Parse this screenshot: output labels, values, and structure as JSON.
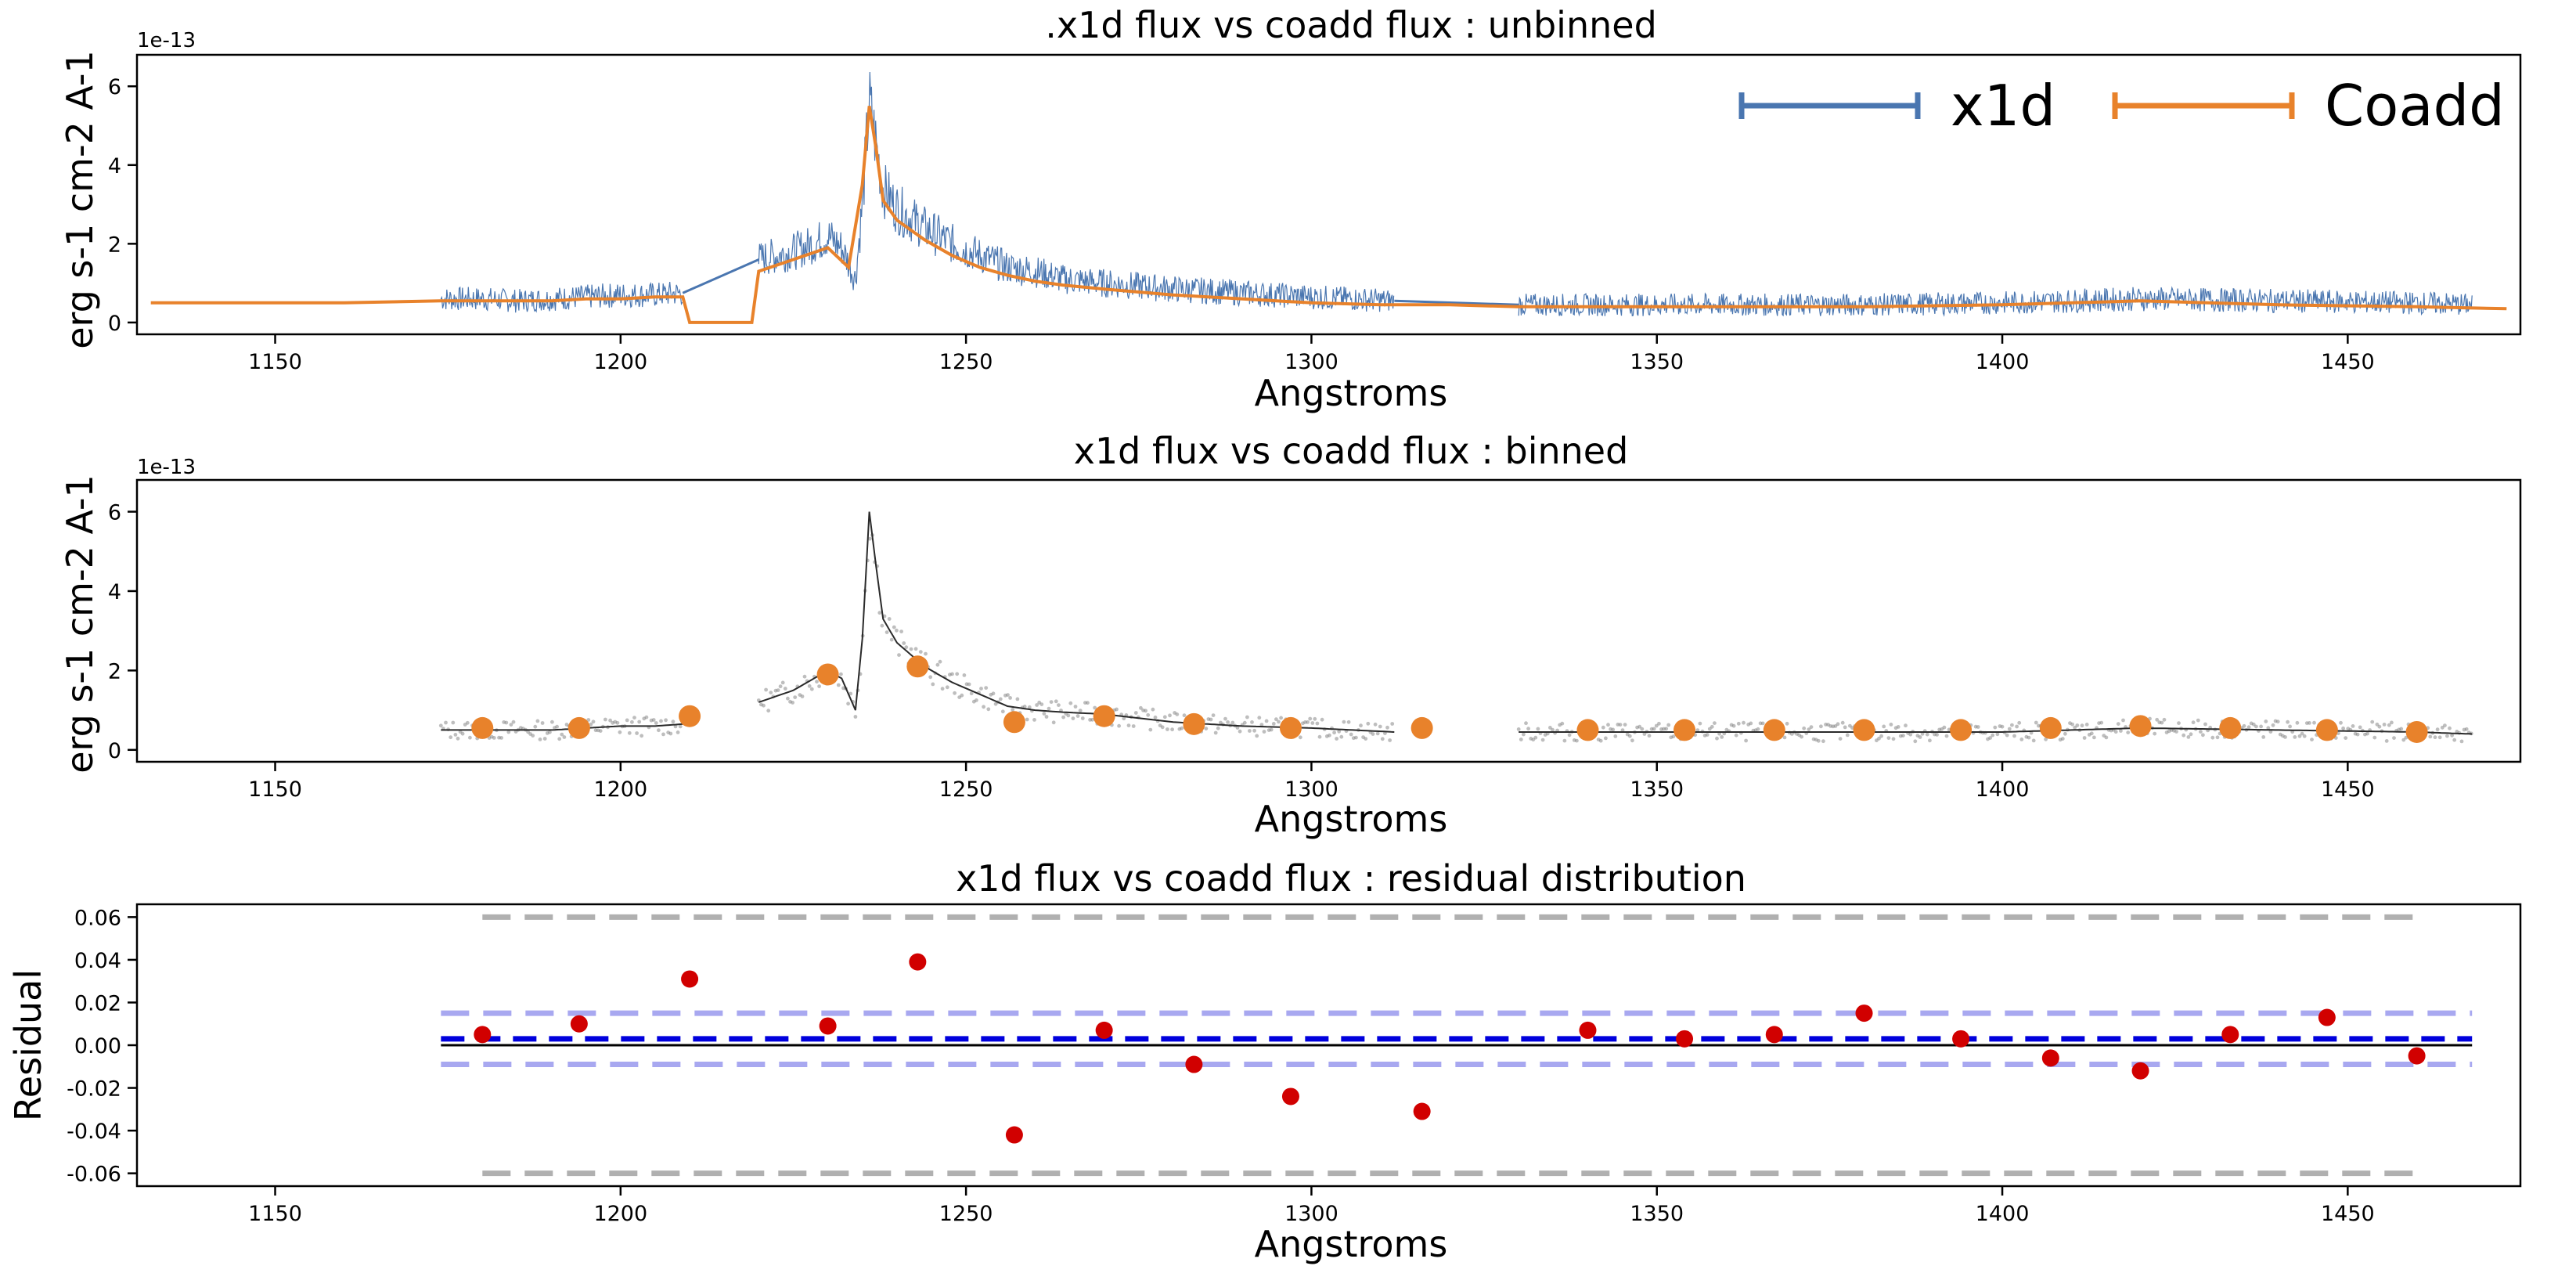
{
  "colors": {
    "x1d": "#4a76b0",
    "coadd": "#e8822b",
    "binned_scatter": "#6e6e6e",
    "binned_line": "#2a2a2a",
    "binned_points": "#e8822b",
    "residual_points": "#d10000",
    "mean_line": "#0000dd",
    "sigma_band": "#a8a8f0",
    "limit_band": "#b0b0b0",
    "zero_line": "#000000"
  },
  "chart_data": [
    {
      "type": "line",
      "title": ".x1d flux vs coadd flux : unbinned",
      "xlabel": "Angstroms",
      "ylabel": "erg s-1 cm-2 A-1",
      "offset_label": "1e-13",
      "xlim": [
        1130,
        1475
      ],
      "ylim": [
        -0.3,
        6.8
      ],
      "xticks": [
        1150,
        1200,
        1250,
        1300,
        1350,
        1400,
        1450
      ],
      "yticks": [
        0,
        2,
        4,
        6
      ],
      "grid": false,
      "legend": {
        "placement": "top-right",
        "entries": [
          "x1d",
          "Coadd"
        ]
      },
      "series": [
        {
          "name": "x1d",
          "x": [
            1174,
            1180,
            1185,
            1190,
            1195,
            1200,
            1205,
            1209,
            1220,
            1225,
            1228,
            1230,
            1232,
            1234,
            1235,
            1236,
            1237,
            1238,
            1240,
            1244,
            1248,
            1252,
            1256,
            1260,
            1264,
            1270,
            1280,
            1290,
            1300,
            1306,
            1312,
            1330,
            1340,
            1360,
            1380,
            1400,
            1420,
            1440,
            1460,
            1468
          ],
          "y": [
            0.6,
            0.6,
            0.55,
            0.6,
            0.65,
            0.7,
            0.7,
            0.75,
            1.6,
            1.8,
            2.0,
            2.2,
            1.9,
            1.1,
            3.0,
            5.6,
            4.5,
            3.4,
            2.9,
            2.4,
            2.0,
            1.7,
            1.4,
            1.3,
            1.1,
            1.0,
            0.85,
            0.75,
            0.65,
            0.6,
            0.55,
            0.45,
            0.45,
            0.45,
            0.45,
            0.5,
            0.6,
            0.55,
            0.5,
            0.45
          ]
        },
        {
          "name": "Coadd",
          "x": [
            1132,
            1140,
            1150,
            1160,
            1174,
            1185,
            1190,
            1195,
            1200,
            1205,
            1209,
            1210,
            1219,
            1220,
            1225,
            1230,
            1233,
            1235,
            1236,
            1237,
            1238,
            1240,
            1244,
            1248,
            1252,
            1256,
            1260,
            1264,
            1270,
            1280,
            1290,
            1300,
            1310,
            1320,
            1330,
            1340,
            1360,
            1380,
            1400,
            1420,
            1440,
            1460,
            1473
          ],
          "y": [
            0.5,
            0.5,
            0.5,
            0.5,
            0.55,
            0.55,
            0.55,
            0.6,
            0.6,
            0.65,
            0.65,
            0.0,
            0.0,
            1.3,
            1.6,
            1.9,
            1.4,
            3.5,
            5.5,
            4.4,
            3.1,
            2.6,
            2.1,
            1.7,
            1.4,
            1.2,
            1.05,
            0.95,
            0.85,
            0.7,
            0.6,
            0.5,
            0.45,
            0.45,
            0.4,
            0.4,
            0.4,
            0.4,
            0.45,
            0.55,
            0.45,
            0.4,
            0.35
          ]
        }
      ]
    },
    {
      "type": "scatter",
      "title": "x1d flux vs coadd flux : binned",
      "xlabel": "Angstroms",
      "ylabel": "erg s-1 cm-2 A-1",
      "offset_label": "1e-13",
      "xlim": [
        1130,
        1475
      ],
      "ylim": [
        -0.3,
        6.8
      ],
      "xticks": [
        1150,
        1200,
        1250,
        1300,
        1350,
        1400,
        1450
      ],
      "yticks": [
        0,
        2,
        4,
        6
      ],
      "grid": false,
      "series": [
        {
          "name": "",
          "x": [
            1174,
            1180,
            1185,
            1190,
            1195,
            1200,
            1205,
            1209,
            1220,
            1225,
            1228,
            1230,
            1232,
            1234,
            1235,
            1236,
            1237,
            1238,
            1240,
            1244,
            1248,
            1252,
            1256,
            1260,
            1264,
            1270,
            1280,
            1290,
            1300,
            1306,
            1312,
            1330,
            1340,
            1360,
            1380,
            1400,
            1420,
            1440,
            1460,
            1468
          ],
          "y": [
            0.5,
            0.5,
            0.5,
            0.5,
            0.55,
            0.6,
            0.6,
            0.65,
            1.2,
            1.5,
            1.8,
            2.0,
            1.8,
            1.0,
            2.8,
            6.0,
            4.6,
            3.3,
            2.7,
            2.1,
            1.7,
            1.4,
            1.1,
            1.0,
            0.95,
            0.9,
            0.7,
            0.6,
            0.55,
            0.5,
            0.45,
            0.45,
            0.45,
            0.45,
            0.45,
            0.45,
            0.55,
            0.5,
            0.45,
            0.4
          ]
        },
        {
          "name": "",
          "x": [
            1180,
            1194,
            1210,
            1230,
            1243,
            1257,
            1270,
            1283,
            1297,
            1316,
            1340,
            1354,
            1367,
            1380,
            1394,
            1407,
            1420,
            1433,
            1447,
            1460
          ],
          "y": [
            0.55,
            0.55,
            0.85,
            1.9,
            2.1,
            0.7,
            0.85,
            0.65,
            0.55,
            0.55,
            0.5,
            0.5,
            0.5,
            0.5,
            0.5,
            0.55,
            0.6,
            0.55,
            0.5,
            0.45
          ]
        }
      ]
    },
    {
      "type": "scatter",
      "title": "x1d flux vs coadd flux : residual distribution",
      "xlabel": "Angstroms",
      "ylabel": "Residual",
      "xlim": [
        1130,
        1475
      ],
      "ylim": [
        -0.066,
        0.066
      ],
      "xticks": [
        1150,
        1200,
        1250,
        1300,
        1350,
        1400,
        1450
      ],
      "yticks": [
        -0.06,
        -0.04,
        -0.02,
        0.0,
        0.02,
        0.04,
        0.06
      ],
      "grid": false,
      "series": [
        {
          "name": "",
          "x": [
            1180,
            1194,
            1210,
            1230,
            1243,
            1257,
            1270,
            1283,
            1297,
            1316,
            1340,
            1354,
            1367,
            1380,
            1394,
            1407,
            1420,
            1433,
            1447,
            1460
          ],
          "y": [
            0.005,
            0.01,
            0.031,
            0.009,
            0.039,
            -0.042,
            0.007,
            -0.009,
            -0.024,
            -0.031,
            0.007,
            0.003,
            0.005,
            0.015,
            0.003,
            -0.006,
            -0.012,
            0.005,
            0.013,
            -0.005
          ]
        }
      ],
      "reference_lines": [
        {
          "y": 0.0,
          "x_range": [
            1174,
            1468
          ],
          "style": "solid"
        },
        {
          "y": 0.003,
          "x_range": [
            1174,
            1468
          ],
          "style": "dashed"
        },
        {
          "y": 0.015,
          "x_range": [
            1174,
            1468
          ],
          "style": "dashed"
        },
        {
          "y": -0.009,
          "x_range": [
            1174,
            1468
          ],
          "style": "dashed"
        },
        {
          "y": 0.06,
          "x_range": [
            1180,
            1460
          ],
          "style": "dashed"
        },
        {
          "y": -0.06,
          "x_range": [
            1180,
            1460
          ],
          "style": "dashed"
        }
      ]
    }
  ]
}
